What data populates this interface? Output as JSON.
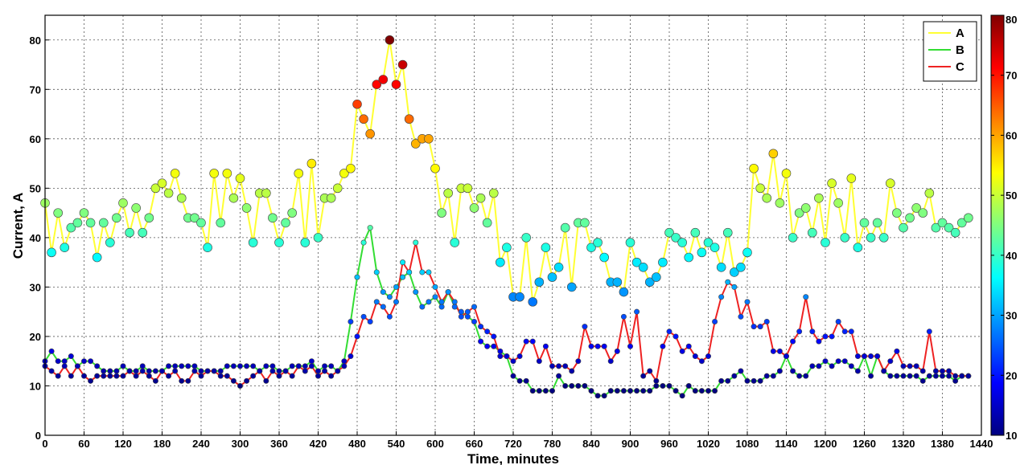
{
  "chart_data": {
    "type": "line",
    "title": "",
    "xlabel": "Time, minutes",
    "ylabel": "Current, A",
    "xlim": [
      0,
      1440
    ],
    "ylim": [
      0,
      85
    ],
    "xticks": [
      0,
      60,
      120,
      180,
      240,
      300,
      360,
      420,
      480,
      540,
      600,
      660,
      720,
      780,
      840,
      900,
      960,
      1020,
      1080,
      1140,
      1200,
      1260,
      1320,
      1380,
      1440
    ],
    "yticks": [
      0,
      10,
      20,
      30,
      40,
      50,
      60,
      70,
      80
    ],
    "grid": true,
    "legend_position": "top-right",
    "markers_colored_by_value": true,
    "colorbar": {
      "min": 10,
      "max": 80,
      "ticks": [
        10,
        20,
        30,
        40,
        50,
        60,
        70,
        80
      ]
    },
    "x_step": 10,
    "series": [
      {
        "name": "A",
        "color": "#ffff33",
        "values": [
          47,
          37,
          45,
          38,
          42,
          43,
          45,
          43,
          36,
          43,
          39,
          44,
          47,
          41,
          46,
          41,
          44,
          50,
          51,
          49,
          53,
          48,
          44,
          44,
          43,
          38,
          53,
          43,
          53,
          48,
          52,
          46,
          39,
          49,
          49,
          44,
          39,
          43,
          45,
          53,
          39,
          55,
          40,
          48,
          48,
          50,
          53,
          54,
          67,
          64,
          61,
          71,
          72,
          80,
          71,
          75,
          64,
          59,
          60,
          60,
          54,
          45,
          49,
          39,
          50,
          50,
          46,
          48,
          43,
          49,
          35,
          38,
          28,
          28,
          40,
          27,
          31,
          38,
          32,
          34,
          42,
          30,
          43,
          43,
          38,
          39,
          36,
          31,
          31,
          29,
          39,
          35,
          34,
          31,
          32,
          35,
          41,
          40,
          39,
          36,
          41,
          37,
          39,
          38,
          34,
          41,
          33,
          34,
          37,
          54,
          50,
          48,
          57,
          47,
          53,
          40,
          45,
          46,
          41,
          48,
          39,
          51,
          47,
          40,
          52,
          38,
          43,
          40,
          43,
          40,
          51,
          45,
          42,
          44,
          46,
          45,
          49,
          42,
          43,
          42,
          41,
          43,
          44
        ]
      },
      {
        "name": "B",
        "color": "#33dd33",
        "values": [
          15,
          17,
          15,
          15,
          16,
          14,
          15,
          15,
          14,
          13,
          13,
          13,
          14,
          13,
          13,
          14,
          13,
          13,
          13,
          14,
          14,
          14,
          14,
          14,
          13,
          13,
          13,
          13,
          14,
          14,
          14,
          14,
          14,
          13,
          14,
          14,
          13,
          13,
          14,
          14,
          14,
          15,
          13,
          14,
          14,
          13,
          15,
          23,
          32,
          39,
          42,
          33,
          29,
          28,
          30,
          32,
          33,
          29,
          26,
          27,
          28,
          26,
          29,
          26,
          25,
          24,
          23,
          19,
          18,
          18,
          17,
          16,
          12,
          11,
          11,
          9,
          9,
          9,
          9,
          12,
          10,
          10,
          10,
          10,
          9,
          8,
          8,
          9,
          9,
          9,
          9,
          9,
          9,
          9,
          10,
          10,
          10,
          9,
          8,
          10,
          9,
          9,
          9,
          9,
          11,
          11,
          12,
          13,
          11,
          11,
          11,
          12,
          12,
          13,
          16,
          13,
          12,
          12,
          14,
          14,
          15,
          14,
          15,
          15,
          14,
          13,
          16,
          12,
          16,
          13,
          12,
          12,
          12,
          12,
          12,
          11,
          12,
          12,
          12,
          12,
          11,
          12,
          12
        ]
      },
      {
        "name": "C",
        "color": "#ee2222",
        "values": [
          14,
          13,
          12,
          14,
          12,
          14,
          12,
          11,
          12,
          12,
          12,
          12,
          12,
          13,
          12,
          13,
          12,
          11,
          13,
          12,
          13,
          11,
          11,
          13,
          12,
          13,
          13,
          12,
          12,
          11,
          10,
          11,
          12,
          13,
          11,
          13,
          12,
          13,
          12,
          14,
          13,
          14,
          12,
          13,
          12,
          13,
          14,
          16,
          20,
          24,
          23,
          27,
          26,
          24,
          27,
          35,
          33,
          39,
          33,
          33,
          30,
          27,
          29,
          27,
          24,
          25,
          26,
          22,
          21,
          20,
          16,
          16,
          15,
          16,
          19,
          19,
          15,
          18,
          14,
          14,
          14,
          13,
          15,
          22,
          18,
          18,
          18,
          15,
          17,
          24,
          18,
          25,
          12,
          13,
          11,
          18,
          21,
          20,
          17,
          18,
          16,
          15,
          16,
          23,
          28,
          31,
          30,
          24,
          27,
          22,
          22,
          23,
          17,
          17,
          16,
          19,
          21,
          28,
          21,
          19,
          20,
          20,
          23,
          21,
          21,
          16,
          16,
          16,
          16,
          13,
          15,
          17,
          14,
          14,
          14,
          13,
          21,
          13,
          13,
          13,
          12,
          12,
          12
        ]
      }
    ]
  }
}
